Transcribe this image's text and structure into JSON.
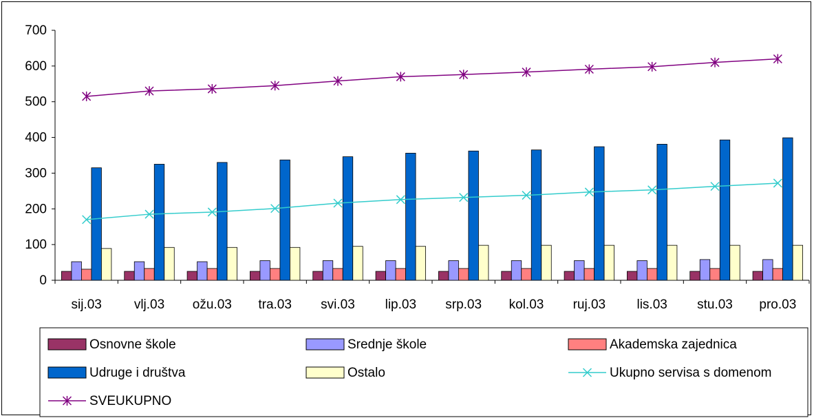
{
  "chart_data": {
    "type": "bar",
    "title": "",
    "xlabel": "",
    "ylabel": "",
    "ylim": [
      0,
      700
    ],
    "yticks": [
      0,
      100,
      200,
      300,
      400,
      500,
      600,
      700
    ],
    "grid": false,
    "legend_position": "bottom",
    "categories": [
      "sij.03",
      "vlj.03",
      "ožu.03",
      "tra.03",
      "svi.03",
      "lip.03",
      "srp.03",
      "kol.03",
      "ruj.03",
      "lis.03",
      "stu.03",
      "pro.03"
    ],
    "series": [
      {
        "name": "Osnovne škole",
        "kind": "bar",
        "color": "#993366",
        "values": [
          25,
          25,
          25,
          25,
          25,
          25,
          25,
          25,
          25,
          25,
          25,
          25
        ]
      },
      {
        "name": "Srednje škole",
        "kind": "bar",
        "color": "#9999FF",
        "values": [
          52,
          52,
          52,
          55,
          55,
          55,
          55,
          55,
          55,
          55,
          58,
          58
        ]
      },
      {
        "name": "Akademska zajednica",
        "kind": "bar",
        "color": "#FF8080",
        "values": [
          31,
          33,
          33,
          33,
          33,
          33,
          33,
          33,
          33,
          33,
          33,
          33
        ]
      },
      {
        "name": "Udruge i društva",
        "kind": "bar",
        "color": "#0066CC",
        "values": [
          315,
          325,
          330,
          337,
          346,
          356,
          362,
          365,
          374,
          381,
          393,
          399
        ]
      },
      {
        "name": "Ostalo",
        "kind": "bar",
        "color": "#FFFFCC",
        "values": [
          89,
          92,
          92,
          92,
          95,
          95,
          98,
          98,
          98,
          98,
          98,
          98
        ]
      },
      {
        "name": "Ukupno servisa s domenom",
        "kind": "line",
        "color": "#33CCCC",
        "marker": "x",
        "values": [
          170,
          185,
          191,
          201,
          216,
          226,
          232,
          238,
          247,
          253,
          263,
          272
        ]
      },
      {
        "name": "SVEUKUPNO",
        "kind": "line",
        "color": "#800080",
        "marker": "asterisk",
        "values": [
          515,
          530,
          536,
          545,
          558,
          570,
          576,
          583,
          591,
          598,
          610,
          620
        ]
      }
    ]
  }
}
